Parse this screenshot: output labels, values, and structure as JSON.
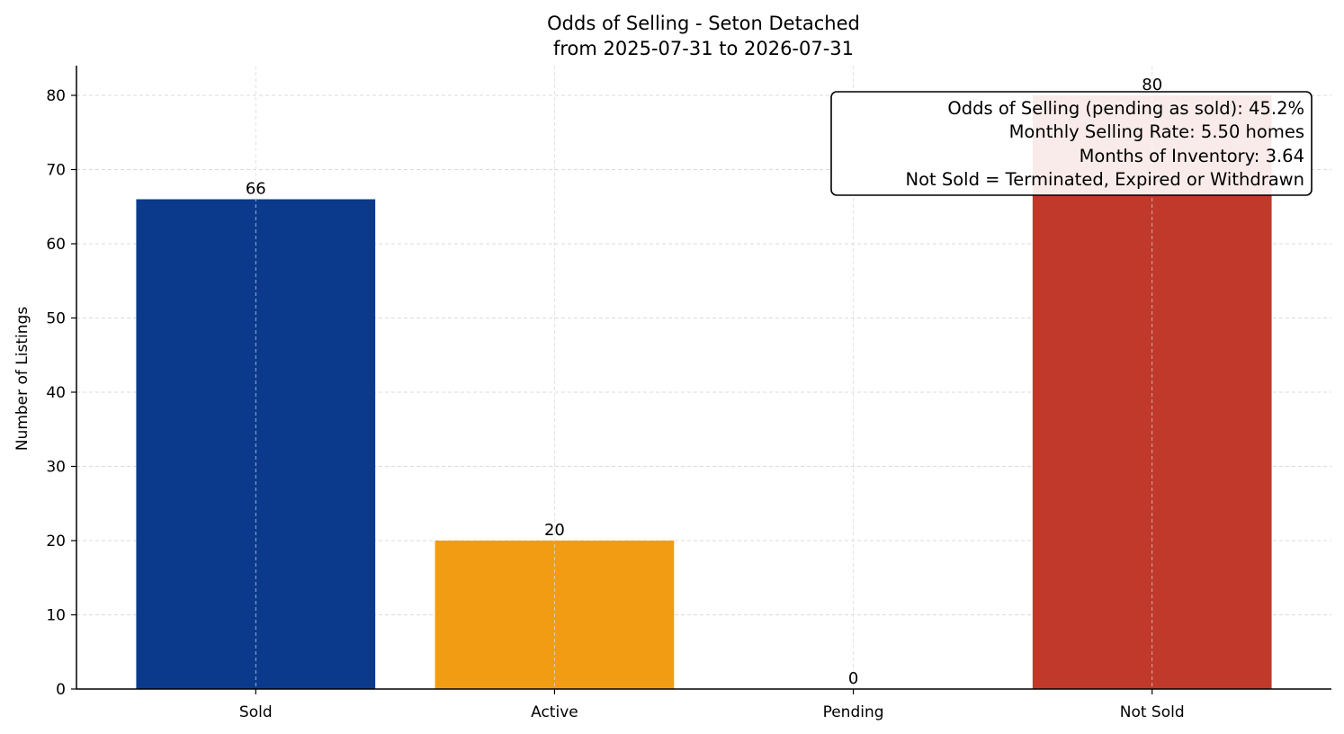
{
  "chart_data": {
    "type": "bar",
    "title": "Odds of Selling - Seton Detached",
    "subtitle": "from 2025-07-31 to 2026-07-31",
    "xlabel": "",
    "ylabel": "Number of Listings",
    "categories": [
      "Sold",
      "Active",
      "Pending",
      "Not Sold"
    ],
    "values": [
      66,
      20,
      0,
      80
    ],
    "colors": [
      "#0b3a8d",
      "#f29c14",
      "#2a9d4b",
      "#c0392b"
    ],
    "ylim": [
      0,
      84
    ],
    "yticks": [
      0,
      10,
      20,
      30,
      40,
      50,
      60,
      70,
      80
    ],
    "grid": true,
    "annotation": {
      "lines": [
        "Odds of Selling (pending as sold): 45.2%",
        "Monthly Selling Rate: 5.50 homes",
        "Months of Inventory: 3.64",
        "Not Sold = Terminated, Expired or Withdrawn"
      ],
      "placement": "top-right"
    }
  }
}
